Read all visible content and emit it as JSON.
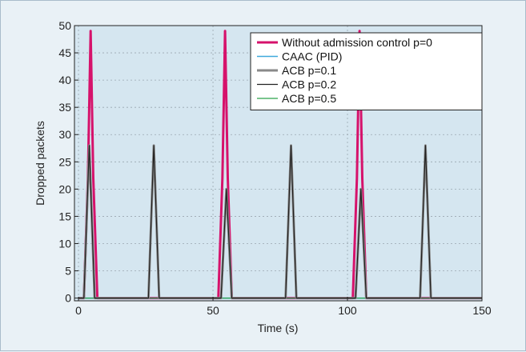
{
  "chart_data": {
    "type": "line",
    "title": "",
    "xlabel": "Time (s)",
    "ylabel": "Dropped packets",
    "xlim": [
      -1.5,
      150
    ],
    "ylim": [
      -0.5,
      50
    ],
    "xticks": [
      0,
      50,
      100,
      150
    ],
    "yticks": [
      0,
      5,
      10,
      15,
      20,
      25,
      30,
      35,
      40,
      45,
      50
    ],
    "grid": true,
    "legend_position": "top-right",
    "plot_background": "#d5e6f0",
    "series": [
      {
        "name": "Without admission control p=0",
        "color": "#d6126b",
        "points": [
          [
            0,
            0
          ],
          [
            2,
            0
          ],
          [
            3.5,
            22
          ],
          [
            4.5,
            49
          ],
          [
            5.5,
            22
          ],
          [
            7,
            0
          ],
          [
            52,
            0
          ],
          [
            53.5,
            22
          ],
          [
            54.5,
            49
          ],
          [
            55.5,
            22
          ],
          [
            57,
            0
          ],
          [
            102,
            0
          ],
          [
            103.5,
            22
          ],
          [
            104.5,
            49
          ],
          [
            105.5,
            22
          ],
          [
            107,
            0
          ],
          [
            150,
            0
          ]
        ]
      },
      {
        "name": "CAAC (PID)",
        "color": "#3fa9dc",
        "points": [
          [
            0,
            0
          ],
          [
            150,
            0
          ]
        ]
      },
      {
        "name": "ACB p=0.1",
        "color": "#8a8a8a",
        "points": [
          [
            0,
            0
          ],
          [
            2,
            0
          ],
          [
            4,
            28
          ],
          [
            6,
            0
          ],
          [
            26,
            0
          ],
          [
            28,
            28
          ],
          [
            30,
            0
          ],
          [
            53,
            0
          ],
          [
            55,
            20
          ],
          [
            57,
            0
          ],
          [
            77,
            0
          ],
          [
            79,
            28
          ],
          [
            81,
            0
          ],
          [
            103,
            0
          ],
          [
            105,
            20
          ],
          [
            107,
            0
          ],
          [
            127,
            0
          ],
          [
            129,
            28
          ],
          [
            131,
            0
          ],
          [
            150,
            0
          ]
        ]
      },
      {
        "name": "ACB p=0.2",
        "color": "#222222",
        "points": [
          [
            0,
            0
          ],
          [
            2,
            0
          ],
          [
            4,
            28
          ],
          [
            6,
            0
          ],
          [
            26,
            0
          ],
          [
            28,
            28
          ],
          [
            30,
            0
          ],
          [
            53,
            0
          ],
          [
            55,
            20
          ],
          [
            57,
            0
          ],
          [
            77,
            0
          ],
          [
            79,
            28
          ],
          [
            81,
            0
          ],
          [
            103,
            0
          ],
          [
            105,
            20
          ],
          [
            107,
            0
          ],
          [
            127,
            0
          ],
          [
            129,
            28
          ],
          [
            131,
            0
          ],
          [
            150,
            0
          ]
        ]
      },
      {
        "name": "ACB p=0.5",
        "color": "#2aa24a",
        "points": [
          [
            0,
            0
          ],
          [
            150,
            0
          ]
        ]
      }
    ]
  }
}
